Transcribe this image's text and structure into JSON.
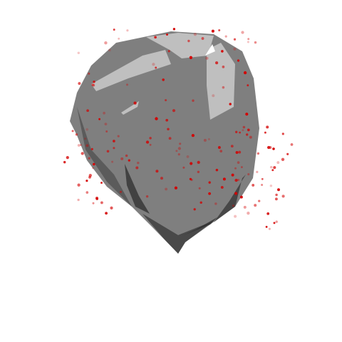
{
  "render": {
    "background_color": "#ffffff",
    "mesh_color": "#7f7f7f",
    "mesh_shadow_color": "#3f3f3f",
    "mesh_highlight_color": "#bfbfbf",
    "point_color": "#d40000",
    "point_count_visible": "approx 180"
  }
}
